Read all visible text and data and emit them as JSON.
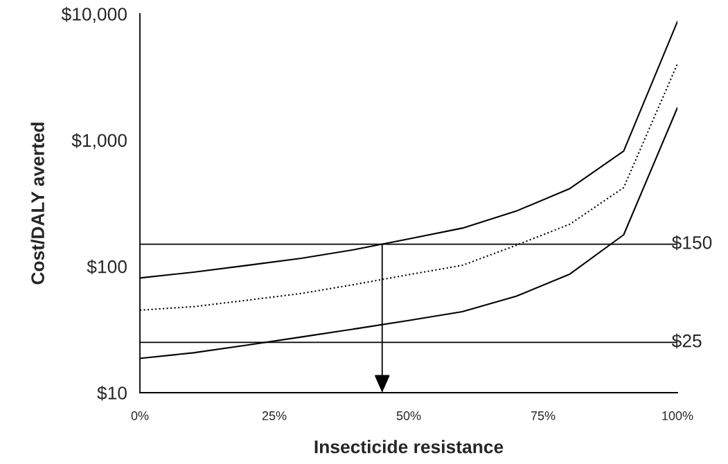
{
  "chart_data": {
    "type": "line",
    "xlabel": "Insecticide resistance",
    "ylabel": "Cost/DALY averted",
    "x": [
      0,
      10,
      20,
      30,
      40,
      50,
      60,
      70,
      80,
      90,
      100
    ],
    "series": [
      {
        "color": "#000000",
        "line_style": "solid",
        "values": [
          81,
          90,
          102,
          116,
          136,
          165,
          201,
          274,
          414,
          819,
          8690
        ]
      },
      {
        "color": "#000000",
        "line_style": "dotted",
        "values": [
          45,
          48,
          54,
          61,
          72,
          86,
          102,
          147,
          216,
          421,
          4020
        ]
      },
      {
        "color": "#000000",
        "line_style": "solid",
        "values": [
          18.7,
          20.7,
          23.8,
          27.6,
          32,
          37.3,
          43.8,
          58,
          87,
          178,
          1806
        ]
      }
    ],
    "log": "y",
    "xlim": [
      0,
      100
    ],
    "ylim": [
      10,
      10000
    ],
    "xticks": [
      {
        "value": 0,
        "label": "0%"
      },
      {
        "value": 25,
        "label": "25%"
      },
      {
        "value": 50,
        "label": "50%"
      },
      {
        "value": 75,
        "label": "75%"
      },
      {
        "value": 100,
        "label": "100%"
      }
    ],
    "yticks": [
      {
        "value": 10,
        "label": "$10"
      },
      {
        "value": 100,
        "label": "$100"
      },
      {
        "value": 1000,
        "label": "$1,000"
      },
      {
        "value": 10000,
        "label": "$10,000"
      }
    ],
    "ref_lines": [
      {
        "axis": "y",
        "value": 150,
        "label": "$150",
        "color": "#000000"
      },
      {
        "axis": "y",
        "value": 25,
        "label": "$25",
        "color": "#000000"
      }
    ],
    "grid": false,
    "legend": false,
    "marker": "none"
  }
}
